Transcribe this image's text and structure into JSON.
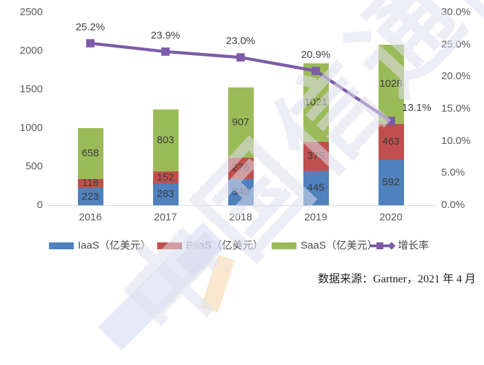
{
  "chart_data": {
    "type": "combo-stacked-bar-line",
    "title": "",
    "categories": [
      "2016",
      "2017",
      "2018",
      "2019",
      "2020"
    ],
    "series": [
      {
        "name": "IaaS（亿美元）",
        "type": "bar",
        "color": "#4F81BD",
        "values": [
          223,
          283,
          340,
          445,
          592
        ]
      },
      {
        "name": "PaaS（亿美元）",
        "type": "bar",
        "color": "#C0504D",
        "values": [
          118,
          152,
          276,
          375,
          463
        ]
      },
      {
        "name": "SaaS（亿美元）",
        "type": "bar",
        "color": "#9BBB59",
        "values": [
          658,
          803,
          907,
          1021,
          1028
        ]
      },
      {
        "name": "增长率",
        "type": "line",
        "color": "#7C5CA8",
        "values": [
          25.2,
          23.9,
          23.0,
          20.9,
          13.1
        ],
        "point_labels": [
          "25.2%",
          "23.9%",
          "23.0%",
          "20.9%",
          "13.1%"
        ]
      }
    ],
    "left_axis": {
      "min": 0,
      "max": 2500,
      "step": 500,
      "ticks": [
        "0",
        "500",
        "1000",
        "1500",
        "2000",
        "2500"
      ]
    },
    "right_axis": {
      "min": 0,
      "max": 30,
      "step": 5,
      "ticks": [
        "0.0%",
        "5.0%",
        "10.0%",
        "15.0%",
        "20.0%",
        "25.0%",
        "30.0%"
      ]
    },
    "grid": false,
    "legend_position": "bottom"
  },
  "source_note": "数据来源：Gartner，2021 年 4 月",
  "watermark": {
    "text": "中国信通院"
  }
}
